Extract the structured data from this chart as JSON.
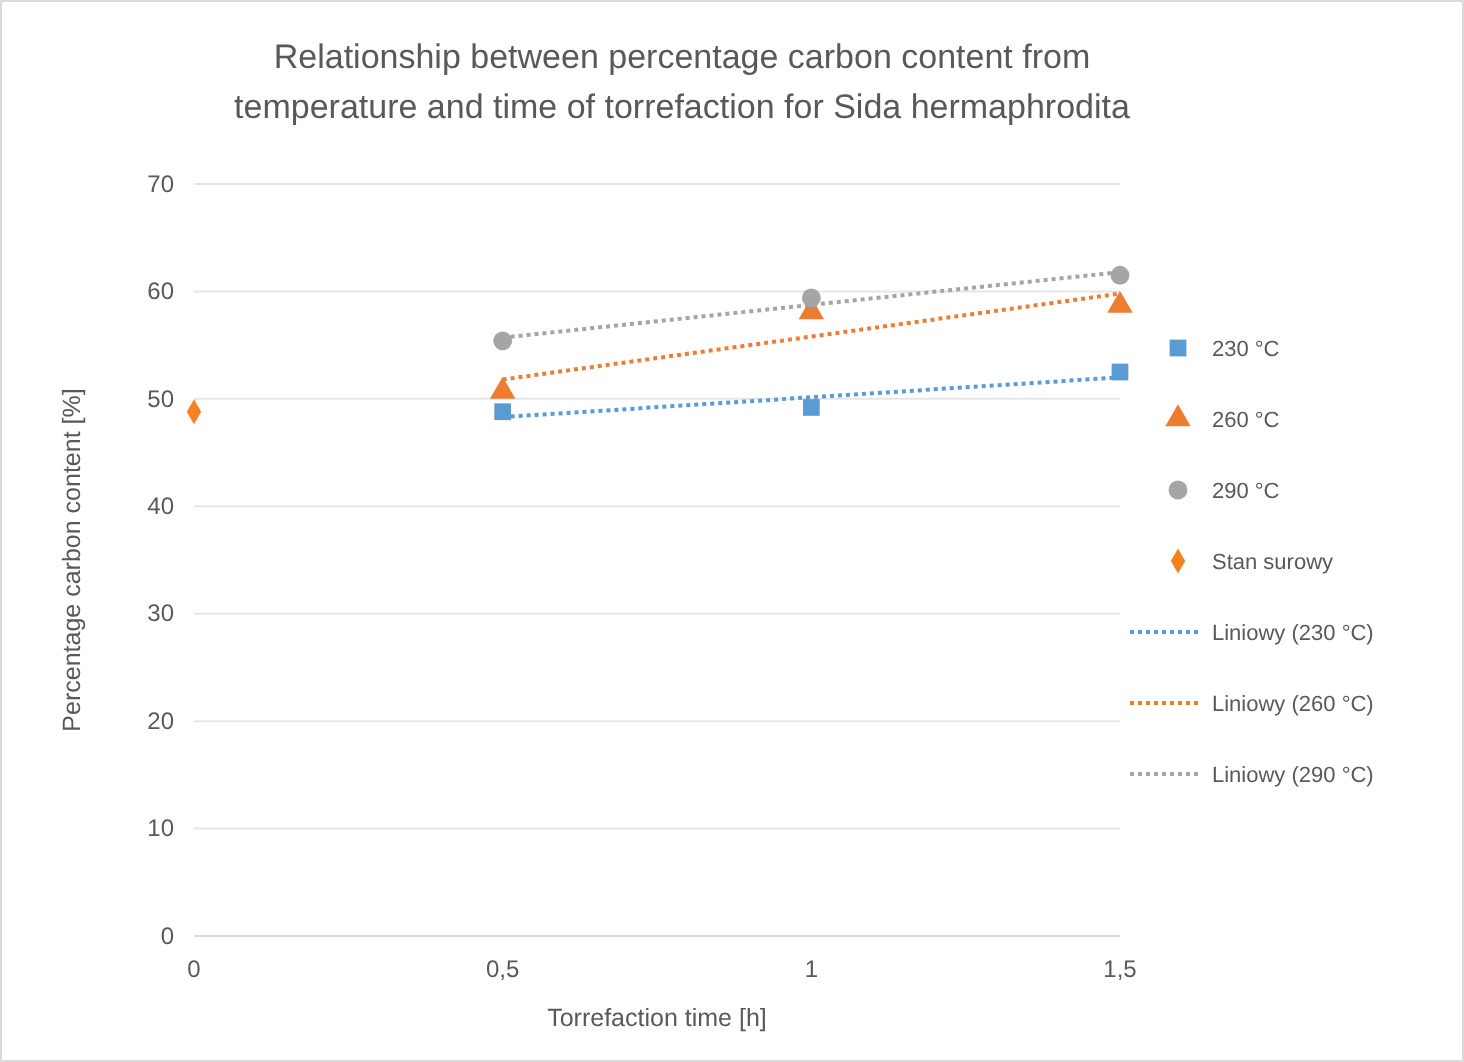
{
  "chart_data": {
    "type": "scatter",
    "title": "Relationship between percentage carbon content from temperature and time of torrefaction for Sida hermaphrodita",
    "xlabel": "Torrefaction time [h]",
    "ylabel": "Percentage carbon content [%]",
    "xlim": [
      0,
      1.5
    ],
    "xticks": [
      0,
      {
        "value": 0.5,
        "label": "0,5"
      },
      1,
      {
        "value": 1.5,
        "label": "1,5"
      }
    ],
    "ylim": [
      0,
      70
    ],
    "yticks": [
      0,
      10,
      20,
      30,
      40,
      50,
      60,
      70
    ],
    "grid": "y",
    "legend": "right",
    "series": [
      {
        "name": "230 °C",
        "marker": "square",
        "color": "#5b9bd5",
        "x": [
          0.5,
          1,
          1.5
        ],
        "values": [
          48.8,
          49.2,
          52.5
        ]
      },
      {
        "name": "260 °C",
        "marker": "triangle",
        "color": "#ed7d31",
        "x": [
          0.5,
          1,
          1.5
        ],
        "values": [
          50.7,
          58.1,
          58.7
        ]
      },
      {
        "name": "290 °C",
        "marker": "circle",
        "color": "#a5a5a5",
        "x": [
          0.5,
          1,
          1.5
        ],
        "values": [
          55.4,
          59.4,
          61.5
        ]
      },
      {
        "name": "Stan surowy",
        "marker": "diamond",
        "color": "#f58220",
        "x": [
          0
        ],
        "values": [
          48.8
        ]
      },
      {
        "name": "Liniowy (230 °C)",
        "type": "line",
        "line_style": "dotted",
        "marker": "none",
        "color": "#5b9bd5",
        "x": [
          0.5,
          1.5
        ],
        "values": [
          48.3,
          52.0
        ]
      },
      {
        "name": "Liniowy (260 °C)",
        "type": "line",
        "line_style": "dotted",
        "marker": "none",
        "color": "#ed7d31",
        "x": [
          0.5,
          1.5
        ],
        "values": [
          51.8,
          59.8
        ]
      },
      {
        "name": "Liniowy (290 °C)",
        "type": "line",
        "line_style": "dotted",
        "marker": "none",
        "color": "#a5a5a5",
        "x": [
          0.5,
          1.5
        ],
        "values": [
          55.7,
          61.8
        ]
      }
    ]
  }
}
